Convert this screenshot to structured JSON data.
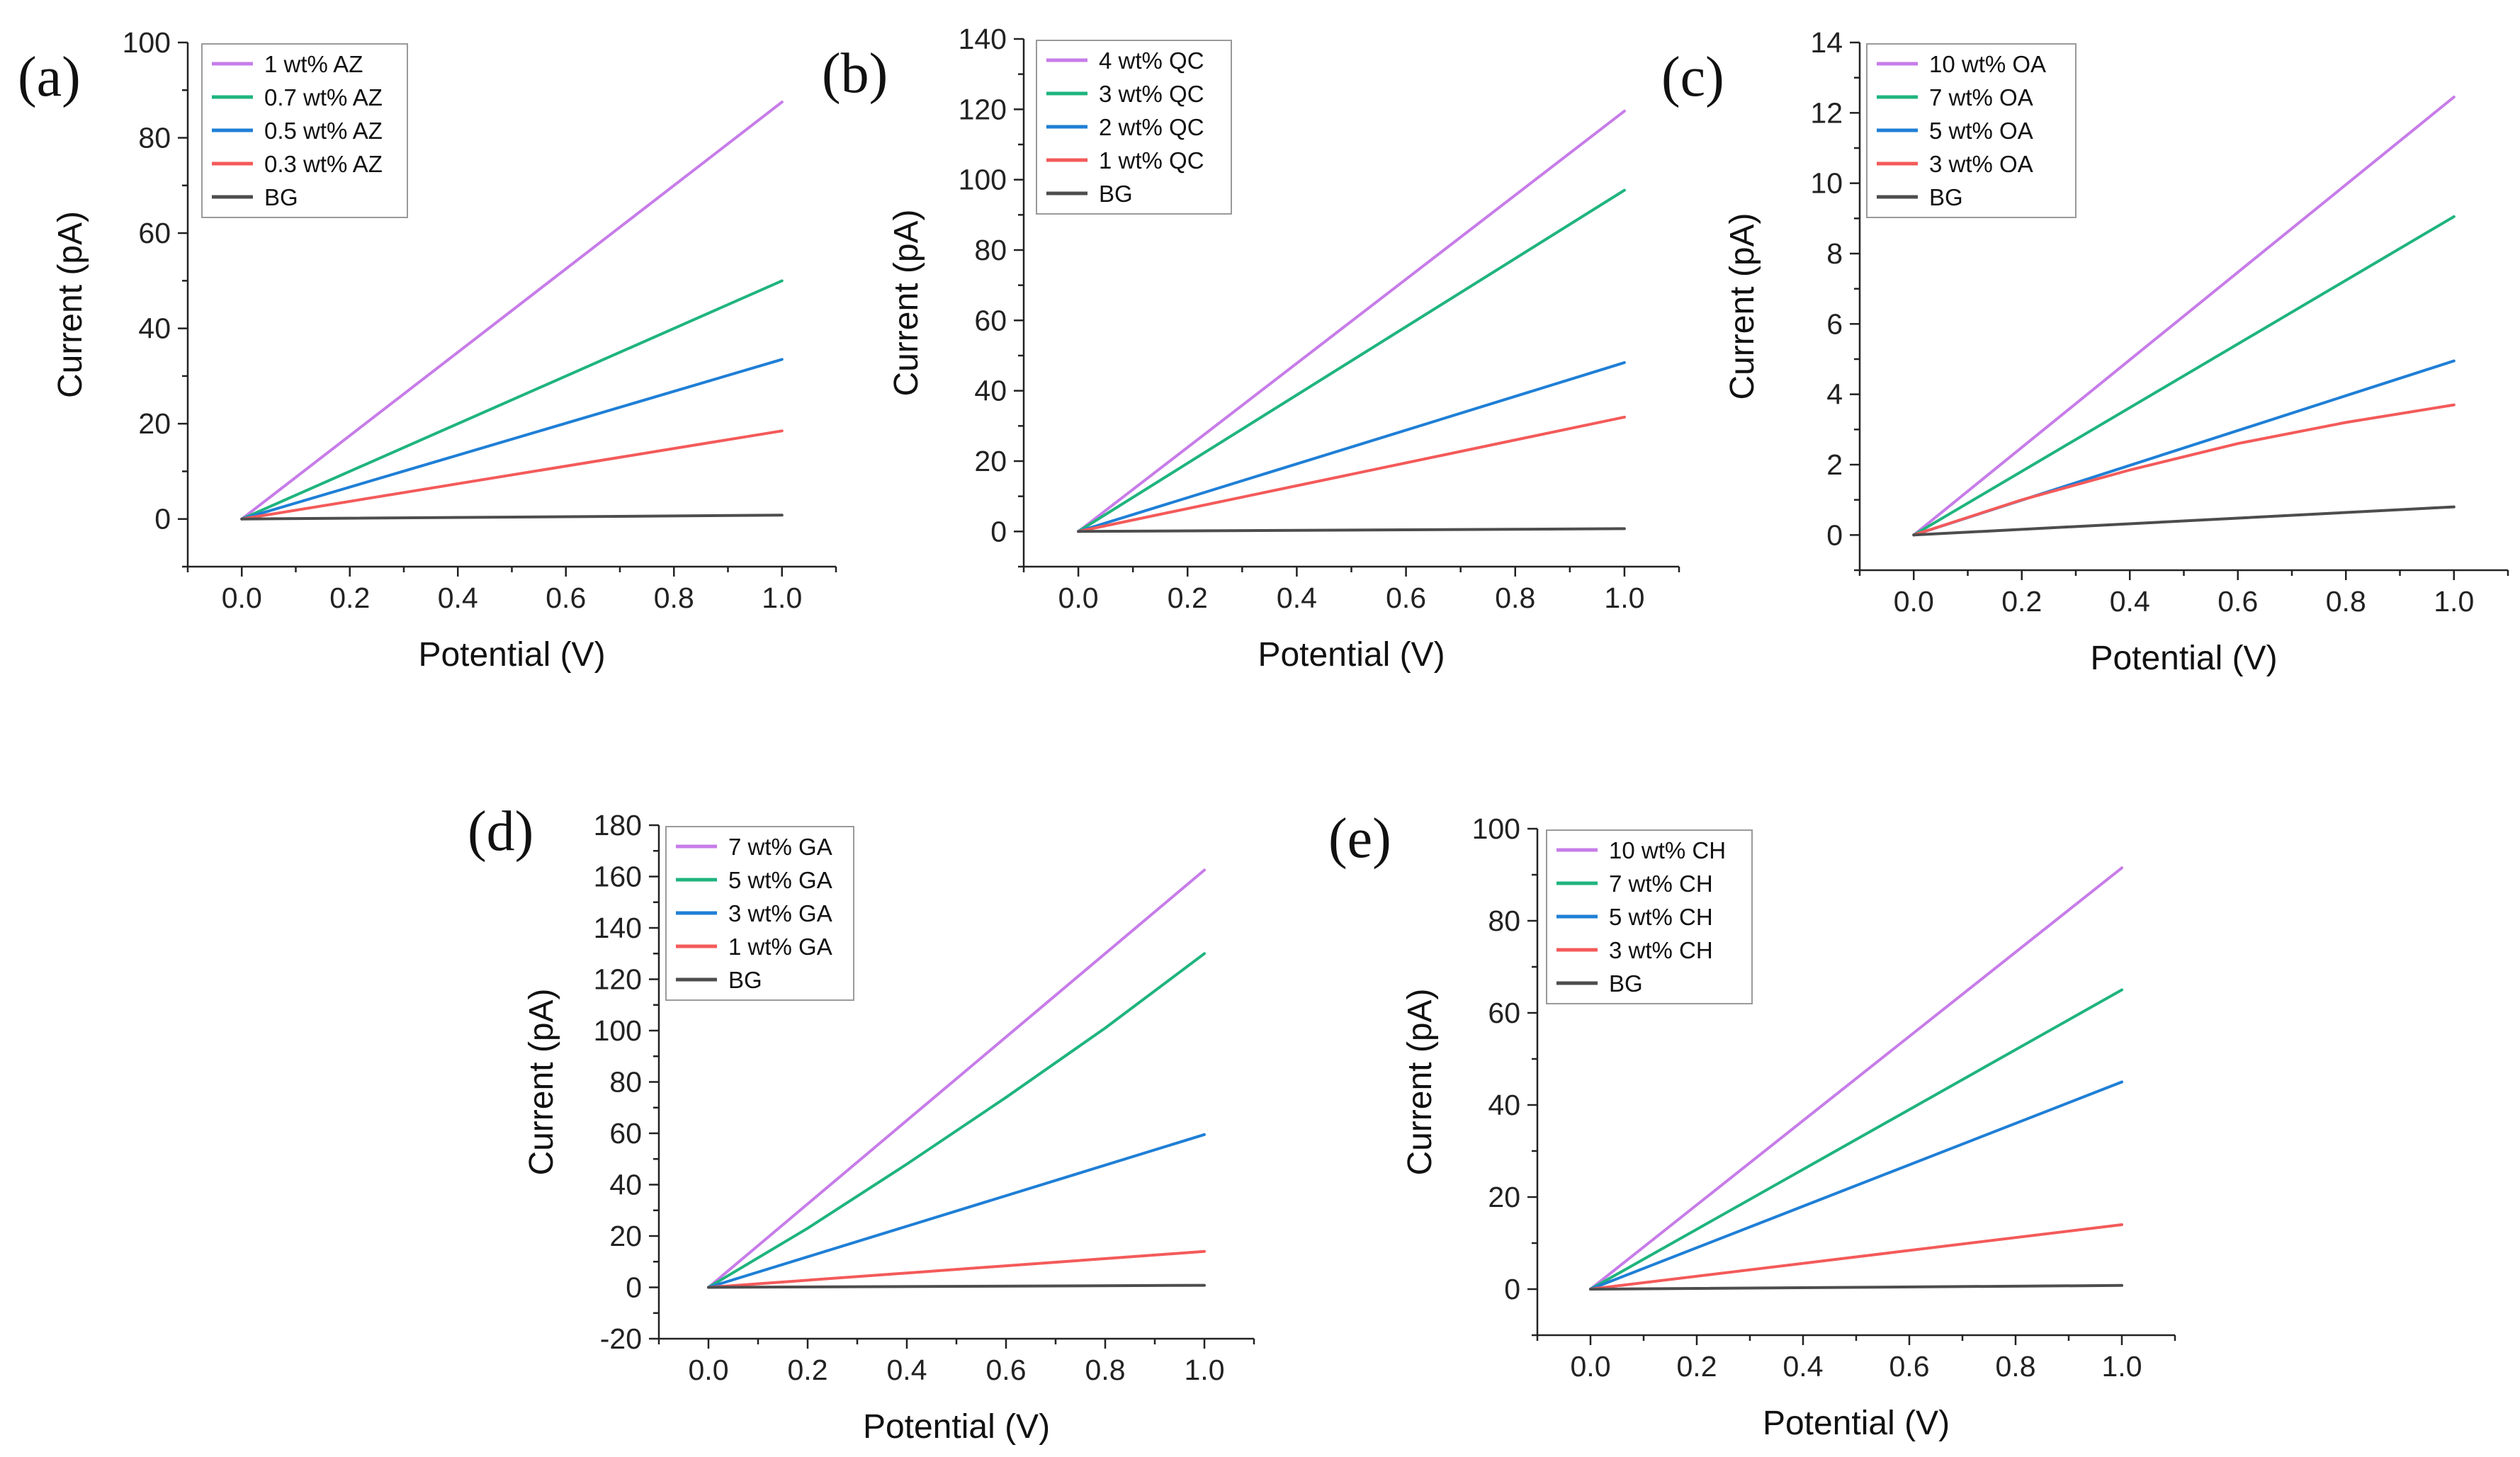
{
  "figure_letters": [
    "(a)",
    "(b)",
    "(c)",
    "(d)",
    "(e)"
  ],
  "colors": {
    "purple": "#c77ce9",
    "green": "#1fb47e",
    "blue": "#1f7fd6",
    "red": "#f45a5a",
    "gray": "#4d4d4d"
  },
  "chart_data": [
    {
      "type": "line",
      "panel_label": "(a)",
      "xlabel": "Potential (V)",
      "ylabel": "Current (pA)",
      "xlim": [
        -0.1,
        1.1
      ],
      "ylim": [
        -10,
        100
      ],
      "xticks": [
        0.0,
        0.2,
        0.4,
        0.6,
        0.8,
        1.0
      ],
      "xtick_labels": [
        "0.0",
        "0.2",
        "0.4",
        "0.6",
        "0.8",
        "1.0"
      ],
      "yticks": [
        0,
        20,
        40,
        60,
        80,
        100
      ],
      "ytick_labels": [
        "0",
        "20",
        "40",
        "60",
        "80",
        "100"
      ],
      "legend_position": "top-left",
      "series": [
        {
          "name": "1 wt% AZ",
          "color": "purple",
          "x": [
            0,
            1
          ],
          "y": [
            0,
            87.5
          ]
        },
        {
          "name": "0.7 wt% AZ",
          "color": "green",
          "x": [
            0,
            1
          ],
          "y": [
            0,
            50
          ]
        },
        {
          "name": "0.5 wt% AZ",
          "color": "blue",
          "x": [
            0,
            1
          ],
          "y": [
            0,
            33.5
          ]
        },
        {
          "name": "0.3 wt% AZ",
          "color": "red",
          "x": [
            0,
            1
          ],
          "y": [
            0,
            18.5
          ]
        },
        {
          "name": "BG",
          "color": "gray",
          "x": [
            0,
            1
          ],
          "y": [
            0,
            0.8
          ]
        }
      ]
    },
    {
      "type": "line",
      "panel_label": "(b)",
      "xlabel": "Potential (V)",
      "ylabel": "Current (pA)",
      "xlim": [
        -0.1,
        1.1
      ],
      "ylim": [
        -10,
        140
      ],
      "xticks": [
        0.0,
        0.2,
        0.4,
        0.6,
        0.8,
        1.0
      ],
      "xtick_labels": [
        "0.0",
        "0.2",
        "0.4",
        "0.6",
        "0.8",
        "1.0"
      ],
      "yticks": [
        0,
        20,
        40,
        60,
        80,
        100,
        120,
        140
      ],
      "ytick_labels": [
        "0",
        "20",
        "40",
        "60",
        "80",
        "100",
        "120",
        "140"
      ],
      "legend_position": "top-left",
      "series": [
        {
          "name": "4 wt% QC",
          "color": "purple",
          "x": [
            0,
            1
          ],
          "y": [
            0,
            119.5
          ]
        },
        {
          "name": "3 wt% QC",
          "color": "green",
          "x": [
            0,
            1
          ],
          "y": [
            0,
            97
          ]
        },
        {
          "name": "2 wt% QC",
          "color": "blue",
          "x": [
            0,
            1
          ],
          "y": [
            0,
            48
          ]
        },
        {
          "name": "1 wt% QC",
          "color": "red",
          "x": [
            0,
            1
          ],
          "y": [
            0,
            32.5
          ]
        },
        {
          "name": "BG",
          "color": "gray",
          "x": [
            0,
            1
          ],
          "y": [
            0,
            0.8
          ]
        }
      ]
    },
    {
      "type": "line",
      "panel_label": "(c)",
      "xlabel": "Potential (V)",
      "ylabel": "Current (pA)",
      "xlim": [
        -0.1,
        1.1
      ],
      "ylim": [
        -1,
        14
      ],
      "xticks": [
        0.0,
        0.2,
        0.4,
        0.6,
        0.8,
        1.0
      ],
      "xtick_labels": [
        "0.0",
        "0.2",
        "0.4",
        "0.6",
        "0.8",
        "1.0"
      ],
      "yticks": [
        0,
        2,
        4,
        6,
        8,
        10,
        12,
        14
      ],
      "ytick_labels": [
        "0",
        "2",
        "4",
        "6",
        "8",
        "10",
        "12",
        "14"
      ],
      "legend_position": "top-left",
      "series": [
        {
          "name": "10 wt% OA",
          "color": "purple",
          "x": [
            0,
            1
          ],
          "y": [
            0,
            12.45
          ]
        },
        {
          "name": "7 wt% OA",
          "color": "green",
          "x": [
            0,
            1
          ],
          "y": [
            0,
            9.05
          ]
        },
        {
          "name": "5 wt% OA",
          "color": "blue",
          "x": [
            0,
            1
          ],
          "y": [
            0,
            4.95
          ]
        },
        {
          "name": "3 wt% OA",
          "color": "red",
          "x": [
            0,
            0.2,
            0.4,
            0.6,
            0.8,
            1.0
          ],
          "y": [
            0,
            1.0,
            1.85,
            2.6,
            3.2,
            3.7
          ]
        },
        {
          "name": "BG",
          "color": "gray",
          "x": [
            0,
            1
          ],
          "y": [
            0,
            0.8
          ]
        }
      ]
    },
    {
      "type": "line",
      "panel_label": "(d)",
      "xlabel": "Potential (V)",
      "ylabel": "Current (pA)",
      "xlim": [
        -0.1,
        1.1
      ],
      "ylim": [
        -20,
        180
      ],
      "xticks": [
        0.0,
        0.2,
        0.4,
        0.6,
        0.8,
        1.0
      ],
      "xtick_labels": [
        "0.0",
        "0.2",
        "0.4",
        "0.6",
        "0.8",
        "1.0"
      ],
      "yticks": [
        -20,
        0,
        20,
        40,
        60,
        80,
        100,
        120,
        140,
        160,
        180
      ],
      "ytick_labels": [
        "-20",
        "0",
        "20",
        "40",
        "60",
        "80",
        "100",
        "120",
        "140",
        "160",
        "180"
      ],
      "legend_position": "top-left",
      "series": [
        {
          "name": "7 wt% GA",
          "color": "purple",
          "x": [
            0,
            1
          ],
          "y": [
            0,
            162.5
          ]
        },
        {
          "name": "5 wt% GA",
          "color": "green",
          "x": [
            0,
            0.2,
            0.4,
            0.6,
            0.8,
            1.0
          ],
          "y": [
            0,
            23,
            48,
            74,
            101,
            130
          ]
        },
        {
          "name": "3 wt% GA",
          "color": "blue",
          "x": [
            0,
            1
          ],
          "y": [
            0,
            59.5
          ]
        },
        {
          "name": "1 wt% GA",
          "color": "red",
          "x": [
            0,
            1
          ],
          "y": [
            0,
            14
          ]
        },
        {
          "name": "BG",
          "color": "gray",
          "x": [
            0,
            1
          ],
          "y": [
            0,
            0.8
          ]
        }
      ]
    },
    {
      "type": "line",
      "panel_label": "(e)",
      "xlabel": "Potential (V)",
      "ylabel": "Current (pA)",
      "xlim": [
        -0.1,
        1.1
      ],
      "ylim": [
        -10,
        100
      ],
      "xticks": [
        0.0,
        0.2,
        0.4,
        0.6,
        0.8,
        1.0
      ],
      "xtick_labels": [
        "0.0",
        "0.2",
        "0.4",
        "0.6",
        "0.8",
        "1.0"
      ],
      "yticks": [
        0,
        20,
        40,
        60,
        80,
        100
      ],
      "ytick_labels": [
        "0",
        "20",
        "40",
        "60",
        "80",
        "100"
      ],
      "legend_position": "top-left",
      "series": [
        {
          "name": "10 wt% CH",
          "color": "purple",
          "x": [
            0,
            1
          ],
          "y": [
            0,
            91.5
          ]
        },
        {
          "name": "7 wt% CH",
          "color": "green",
          "x": [
            0,
            1
          ],
          "y": [
            0,
            65
          ]
        },
        {
          "name": "5 wt% CH",
          "color": "blue",
          "x": [
            0,
            1
          ],
          "y": [
            0,
            45
          ]
        },
        {
          "name": "3 wt% CH",
          "color": "red",
          "x": [
            0,
            1
          ],
          "y": [
            0,
            14
          ]
        },
        {
          "name": "BG",
          "color": "gray",
          "x": [
            0,
            1
          ],
          "y": [
            0,
            0.8
          ]
        }
      ]
    }
  ]
}
